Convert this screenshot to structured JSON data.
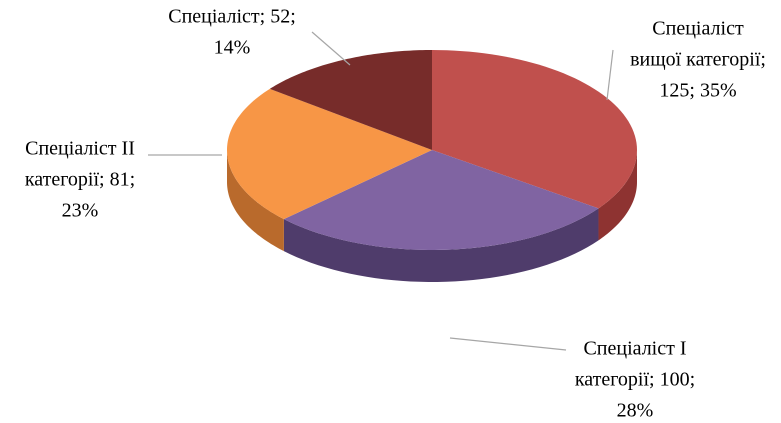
{
  "chart_data": {
    "type": "pie3d",
    "categories": [
      "Спеціаліст вищої категорії",
      "Спеціаліст I категорії",
      "Спеціаліст II категорії",
      "Спеціаліст"
    ],
    "values": [
      125,
      100,
      81,
      52
    ],
    "data_labels": [
      [
        "Спеціаліст",
        "вищої категорії;",
        "125; 35%"
      ],
      [
        "Спеціаліст  I",
        "категорії; 100;",
        "28%"
      ],
      [
        "Спеціаліст II",
        "категорії; 81;",
        "23%"
      ],
      [
        "Спеціаліст;  52;",
        "14%"
      ]
    ],
    "colors": [
      "#c0504d",
      "#8064a2",
      "#f79646",
      "#772c2a"
    ],
    "side_colors": [
      "#8e3331",
      "#4f3c6b",
      "#b96a2c",
      "#4e1a19"
    ]
  }
}
